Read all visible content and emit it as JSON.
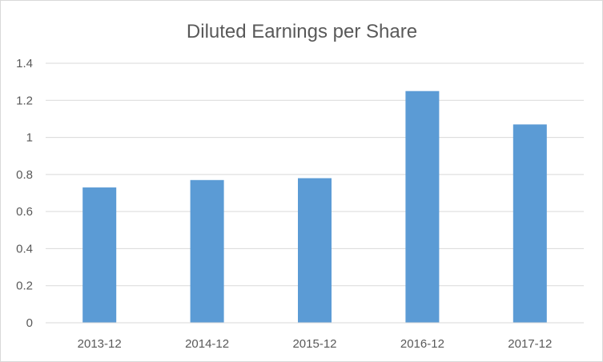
{
  "chart_data": {
    "type": "bar",
    "title": "Diluted Earnings per Share",
    "categories": [
      "2013-12",
      "2014-12",
      "2015-12",
      "2016-12",
      "2017-12"
    ],
    "values": [
      0.73,
      0.77,
      0.78,
      1.25,
      1.07
    ],
    "ylim": [
      0,
      1.4
    ],
    "yticks": [
      "0",
      "0.2",
      "0.4",
      "0.6",
      "0.8",
      "1",
      "1.2",
      "1.4"
    ],
    "xlabel": "",
    "ylabel": "",
    "grid": true,
    "legend": "none",
    "bar_color": "#5b9bd5"
  }
}
